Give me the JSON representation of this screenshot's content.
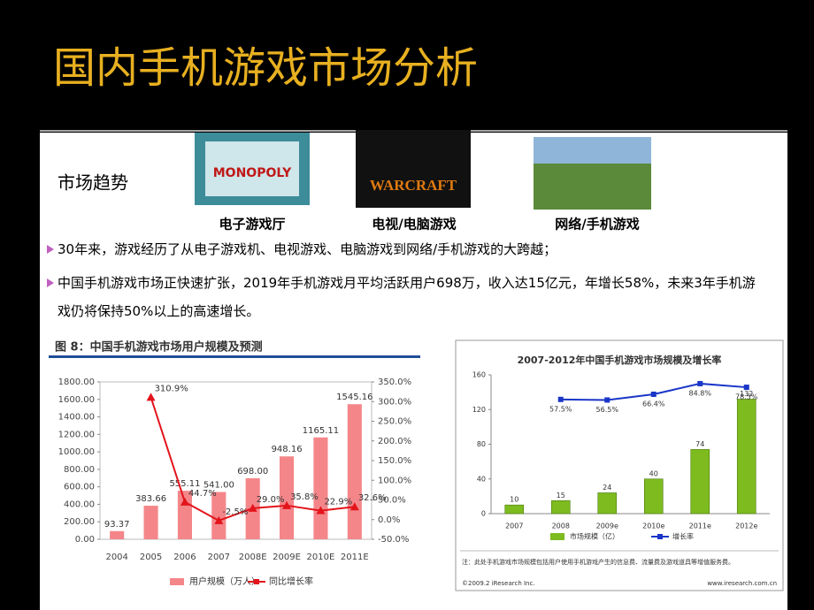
{
  "header": {
    "title": "国内手机游戏市场分析"
  },
  "section_label": "市场趋势",
  "images": [
    {
      "caption": "电子游戏厅",
      "logo": "MONOPOLY"
    },
    {
      "caption": "电视/电脑游戏",
      "logo": "WARCRAFT"
    },
    {
      "caption": "网络/手机游戏"
    }
  ],
  "bullets": [
    "30年来，游戏经历了从电子游戏机、电视游戏、电脑游戏到网络/手机游戏的大跨越；",
    "中国手机游戏市场正快速扩张，2019年手机游戏月平均活跃用户698万，收入达15亿元，年增长58%，未来3年手机游戏仍将保持50%以上的高速增长。"
  ],
  "chart_data": [
    {
      "type": "bar",
      "title": "图 8：中国手机游戏市场用户规模及预测",
      "categories": [
        "2004",
        "2005",
        "2006",
        "2007",
        "2008E",
        "2009E",
        "2010E",
        "2011E"
      ],
      "series": [
        {
          "name": "用户规模（万人）",
          "type": "bar",
          "color": "#f4868a",
          "values": [
            93.37,
            383.66,
            555.11,
            541.0,
            698.0,
            948.16,
            1165.11,
            1545.16
          ],
          "value_labels": [
            "93.37",
            "383.66",
            "555.11",
            "541.00",
            "698.00",
            "948.16",
            "1165.11",
            "1545.16"
          ]
        },
        {
          "name": "同比增长率",
          "type": "line",
          "axis": "y2",
          "color": "#e3141b",
          "values": [
            null,
            310.9,
            44.7,
            -2.5,
            29.0,
            35.8,
            22.9,
            32.6
          ],
          "value_labels": [
            null,
            "310.9%",
            "44.7%",
            "-2.5%",
            "29.0%",
            "35.8%",
            "22.9%",
            "32.6%"
          ]
        }
      ],
      "ylim": [
        0,
        1800
      ],
      "yticks": [
        {
          "value": 0,
          "label": "0.00"
        },
        {
          "value": 200,
          "label": "200.00"
        },
        {
          "value": 400,
          "label": "400.00"
        },
        {
          "value": 600,
          "label": "600.00"
        },
        {
          "value": 800,
          "label": "800.00"
        },
        {
          "value": 1000,
          "label": "1000.00"
        },
        {
          "value": 1200,
          "label": "1200.00"
        },
        {
          "value": 1400,
          "label": "1400.00"
        },
        {
          "value": 1600,
          "label": "1600.00"
        },
        {
          "value": 1800,
          "label": "1800.00"
        }
      ],
      "y2lim": [
        -50,
        350
      ],
      "y2ticks": [
        {
          "value": -50,
          "label": "-50.0%"
        },
        {
          "value": 0,
          "label": "0.0%"
        },
        {
          "value": 50,
          "label": "50.0%"
        },
        {
          "value": 100,
          "label": "100.0%"
        },
        {
          "value": 150,
          "label": "150.0%"
        },
        {
          "value": 200,
          "label": "200.0%"
        },
        {
          "value": 250,
          "label": "250.0%"
        },
        {
          "value": 300,
          "label": "300.0%"
        },
        {
          "value": 350,
          "label": "350.0%"
        }
      ],
      "grid": false
    },
    {
      "type": "bar",
      "title": "2007-2012年中国手机游戏市场规模及增长率",
      "categories": [
        "2007",
        "2008",
        "2009e",
        "2010e",
        "2011e",
        "2012e"
      ],
      "series": [
        {
          "name": "市场规模（亿）",
          "type": "bar",
          "color": "#7dbb1f",
          "values": [
            10,
            15,
            24,
            40,
            74,
            132
          ]
        },
        {
          "name": "增长率",
          "type": "line",
          "axis": "y2",
          "color": "#1a36c8",
          "values": [
            null,
            57.5,
            56.5,
            66.4,
            84.8,
            78.5
          ],
          "value_labels": [
            null,
            "57.5%",
            "56.5%",
            "66.4%",
            "84.8%",
            "78.5%"
          ]
        }
      ],
      "ylim": [
        0,
        160
      ],
      "yticks": [
        0,
        40,
        80,
        120,
        160
      ],
      "y2lim": [
        -140,
        100
      ],
      "grid": false,
      "note": "注：此处手机游戏市场规模包括用户使用手机游戏产生的信息费、流量费及游戏道具等增值服务费。",
      "source": "©2009.2 iResearch Inc.",
      "website": "www.iresearch.com.cn"
    }
  ]
}
